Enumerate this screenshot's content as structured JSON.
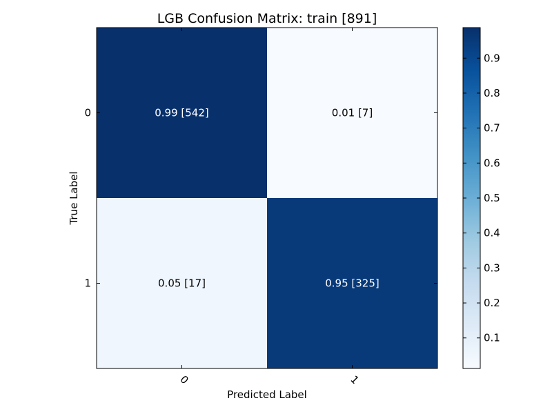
{
  "chart_data": {
    "type": "heatmap",
    "title": "LGB Confusion Matrix: train [891]",
    "xlabel": "Predicted Label",
    "ylabel": "True Label",
    "x_categories": [
      "0",
      "1"
    ],
    "y_categories": [
      "0",
      "1"
    ],
    "values": [
      [
        0.99,
        0.01
      ],
      [
        0.05,
        0.95
      ]
    ],
    "counts": [
      [
        542,
        7
      ],
      [
        17,
        325
      ]
    ],
    "cell_labels": [
      [
        "0.99  [542]",
        "0.01  [7]"
      ],
      [
        "0.05  [17]",
        "0.95  [325]"
      ]
    ],
    "colormap": "Blues",
    "colorbar": {
      "range": [
        0.0127,
        0.9873
      ],
      "ticks": [
        "0.1",
        "0.2",
        "0.3",
        "0.4",
        "0.5",
        "0.6",
        "0.7",
        "0.8",
        "0.9"
      ]
    },
    "grid": false,
    "legend": "colorbar-right"
  }
}
